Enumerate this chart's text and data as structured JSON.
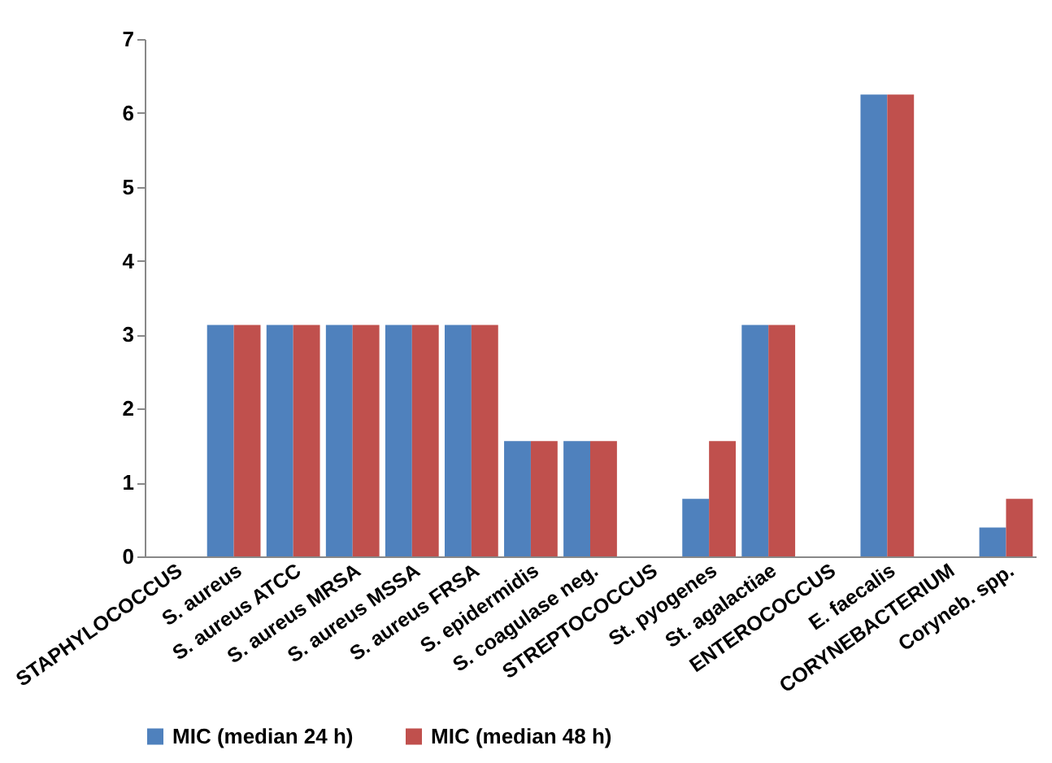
{
  "chart_data": {
    "type": "bar",
    "categories": [
      "STAPHYLOCOCCUS",
      "S. aureus",
      "S. aureus ATCC",
      "S. aureus MRSA",
      "S. aureus MSSA",
      "S. aureus FRSA",
      "S. epidermidis",
      "S. coagulase neg.",
      "STREPTOCOCCUS",
      "St. pyogenes",
      "St. agalactiae",
      "ENTEROCOCCUS",
      "E. faecalis",
      "CORYNEBACTERIUM",
      "Coryneb. spp."
    ],
    "series": [
      {
        "name": "MIC (median 24 h)",
        "color": "#4f81bd",
        "values": [
          null,
          3.13,
          3.13,
          3.13,
          3.13,
          3.13,
          1.56,
          1.56,
          null,
          0.78,
          3.13,
          null,
          6.25,
          null,
          0.39
        ]
      },
      {
        "name": "MIC (median 48 h)",
        "color": "#c0504d",
        "values": [
          null,
          3.13,
          3.13,
          3.13,
          3.13,
          3.13,
          1.56,
          1.56,
          null,
          1.56,
          3.13,
          null,
          6.25,
          null,
          0.78
        ]
      }
    ],
    "ylim": [
      0,
      7
    ],
    "yticks": [
      0,
      1,
      2,
      3,
      4,
      5,
      6,
      7
    ],
    "grid": false,
    "legend": "bottom"
  }
}
